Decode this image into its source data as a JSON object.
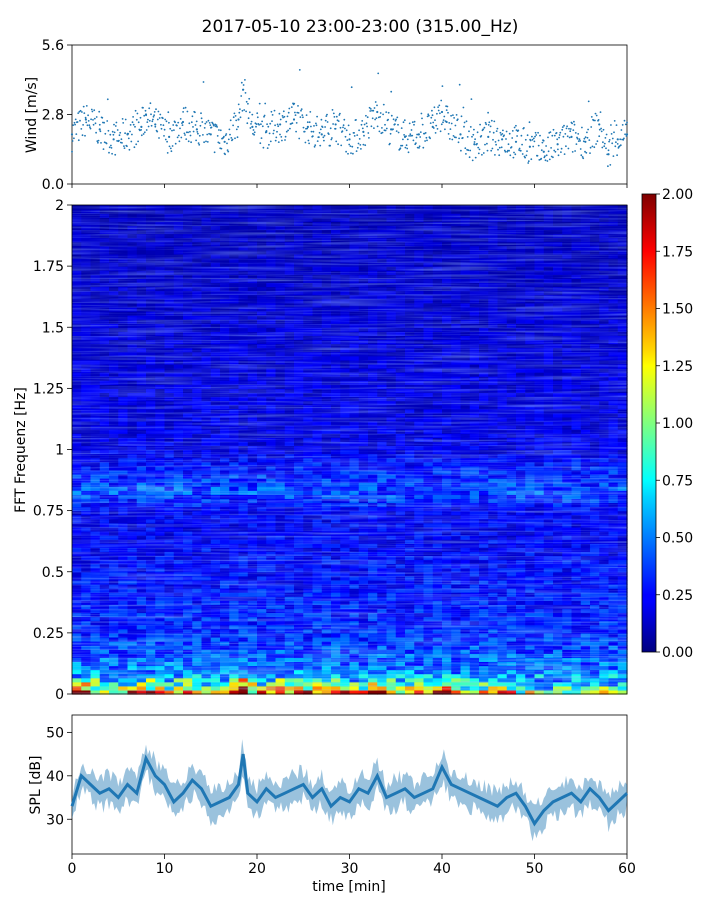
{
  "title": "2017-05-10 23:00-23:00 (315.00_Hz)",
  "chart_data": [
    {
      "type": "scatter",
      "panel": "wind",
      "ylabel": "Wind [m/s]",
      "ylim": [
        0,
        5.6
      ],
      "yticks": [
        "0.0",
        "2.8",
        "5.6"
      ],
      "xlim": [
        0,
        60
      ],
      "marker_color": "#1f77b4",
      "series": [
        {
          "x": [
            0,
            1.5,
            3,
            4.5,
            6,
            7.5,
            8,
            9,
            10.5,
            12,
            13.5,
            15,
            16.5,
            18,
            18.5,
            19.5,
            21,
            22.5,
            24,
            25.5,
            27,
            28.5,
            30,
            31.5,
            33,
            34.5,
            36,
            37.5,
            39,
            40,
            40.5,
            42,
            43.5,
            45,
            46.5,
            48,
            49.5,
            51,
            52.5,
            54,
            55.5,
            57,
            58,
            59,
            60
          ],
          "y": [
            2.0,
            2.6,
            2.2,
            1.8,
            2.0,
            2.3,
            2.8,
            2.4,
            1.9,
            2.5,
            2.2,
            2.0,
            1.7,
            2.6,
            3.8,
            2.3,
            2.1,
            2.4,
            2.6,
            2.3,
            2.0,
            2.4,
            1.8,
            2.1,
            2.9,
            2.2,
            1.9,
            2.0,
            2.3,
            2.9,
            2.5,
            2.0,
            1.6,
            1.9,
            1.8,
            1.7,
            1.5,
            1.3,
            1.6,
            1.9,
            1.7,
            2.4,
            1.2,
            1.8,
            2.0
          ]
        }
      ]
    },
    {
      "type": "heatmap",
      "panel": "spectrogram",
      "ylabel": "FFT Frequenz [Hz]",
      "ylim": [
        0,
        2
      ],
      "yticks": [
        "0",
        "0.25",
        "0.5",
        "0.75",
        "1",
        "1.25",
        "1.5",
        "1.75",
        "2"
      ],
      "xlim": [
        0,
        60
      ],
      "colormap": "jet",
      "colorbar": {
        "range": [
          0,
          2
        ],
        "ticks": [
          "0.00",
          "0.25",
          "0.50",
          "0.75",
          "1.00",
          "1.25",
          "1.50",
          "1.75",
          "2.00"
        ]
      },
      "rows": [
        {
          "y": 0.0,
          "v": 1.5
        },
        {
          "y": 0.03,
          "v": 0.9
        },
        {
          "y": 0.06,
          "v": 0.65
        },
        {
          "y": 0.1,
          "v": 0.5
        },
        {
          "y": 0.15,
          "v": 0.42
        },
        {
          "y": 0.25,
          "v": 0.32
        },
        {
          "y": 0.5,
          "v": 0.26
        },
        {
          "y": 0.75,
          "v": 0.22
        },
        {
          "y": 0.83,
          "v": 0.4
        },
        {
          "y": 1.0,
          "v": 0.2
        },
        {
          "y": 1.5,
          "v": 0.16
        },
        {
          "y": 2.0,
          "v": 0.12
        }
      ]
    },
    {
      "type": "line",
      "panel": "spl",
      "ylabel": "SPL [dB]",
      "xlabel": "time [min]",
      "ylim": [
        22,
        54
      ],
      "yticks": [
        "30",
        "40",
        "50"
      ],
      "xlim": [
        0,
        60
      ],
      "xticks": [
        "0",
        "10",
        "20",
        "30",
        "40",
        "50",
        "60"
      ],
      "color": "#1f77b4",
      "series": [
        {
          "x": [
            0,
            1,
            2,
            3,
            4,
            5,
            6,
            7,
            8,
            9,
            10,
            11,
            12,
            13,
            14,
            15,
            16,
            17,
            18,
            18.5,
            19,
            20,
            21,
            22,
            23,
            24,
            25,
            26,
            27,
            28,
            29,
            30,
            31,
            32,
            33,
            34,
            35,
            36,
            37,
            38,
            39,
            40,
            41,
            42,
            43,
            44,
            45,
            46,
            47,
            48,
            49,
            50,
            51,
            52,
            53,
            54,
            55,
            56,
            57,
            58,
            59,
            60
          ],
          "y": [
            33,
            40,
            38,
            36,
            37,
            35,
            38,
            36,
            44,
            40,
            38,
            34,
            36,
            39,
            37,
            33,
            34,
            35,
            38,
            45,
            36,
            34,
            37,
            35,
            36,
            37,
            38,
            35,
            37,
            33,
            35,
            34,
            37,
            36,
            40,
            35,
            36,
            37,
            35,
            36,
            37,
            42,
            38,
            37,
            36,
            35,
            34,
            33,
            35,
            36,
            33,
            29,
            32,
            34,
            35,
            36,
            34,
            37,
            35,
            32,
            34,
            36
          ]
        }
      ]
    }
  ]
}
